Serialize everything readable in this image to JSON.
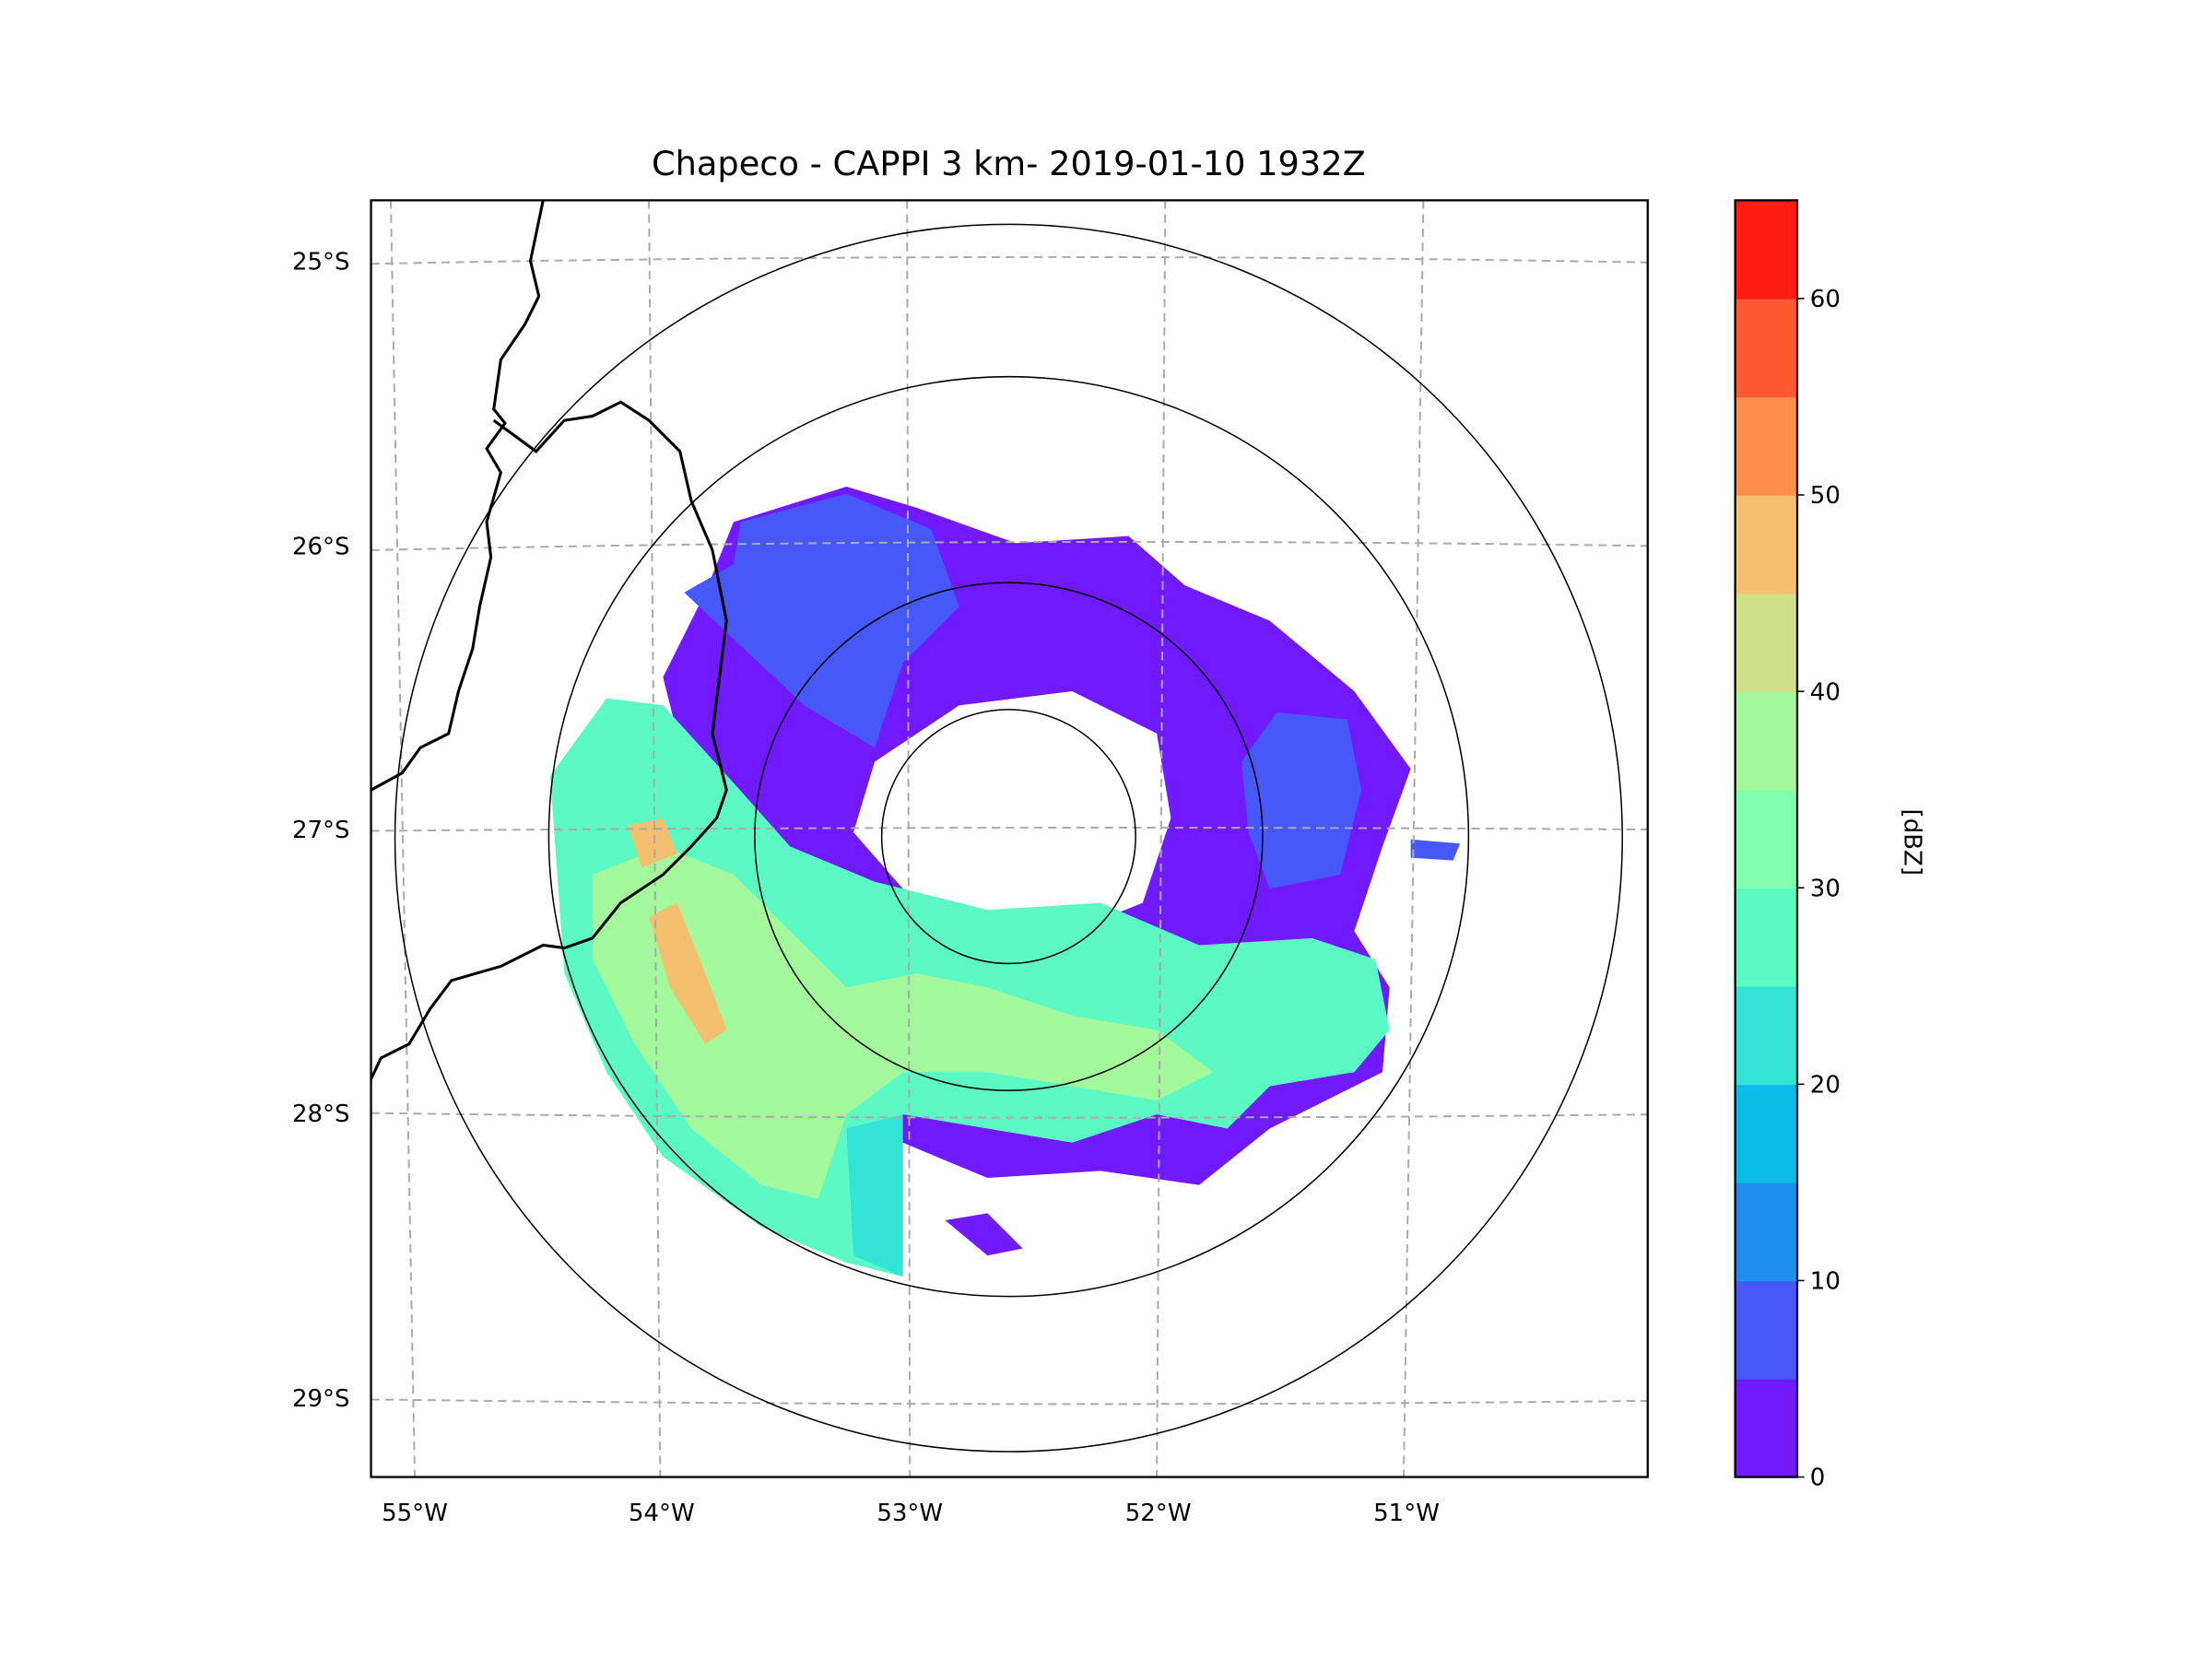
{
  "title": "Chapeco - CAPPI 3 km- 2019-01-10 1932Z",
  "map": {
    "lat_ticks": [
      "25°S",
      "26°S",
      "27°S",
      "28°S",
      "29°S"
    ],
    "lon_ticks": [
      "55°W",
      "54°W",
      "53°W",
      "52°W",
      "51°W"
    ],
    "gridlines": "dashed",
    "range_rings": 4,
    "coastline_color": "#000000"
  },
  "colorbar": {
    "label": "[dBZ]",
    "range": [
      0,
      65
    ],
    "ticks": [
      "0",
      "10",
      "20",
      "30",
      "40",
      "50",
      "60"
    ],
    "bounds": [
      0,
      5,
      10,
      15,
      20,
      25,
      30,
      35,
      40,
      45,
      50,
      55,
      60,
      65
    ],
    "colors": [
      "#7119ff",
      "#4659f8",
      "#1f8fef",
      "#0abce6",
      "#33e3d6",
      "#5df9c5",
      "#82feaf",
      "#a3f89c",
      "#d0e087",
      "#f4bf6e",
      "#ff8f4d",
      "#ff5932",
      "#ff1d12"
    ]
  }
}
